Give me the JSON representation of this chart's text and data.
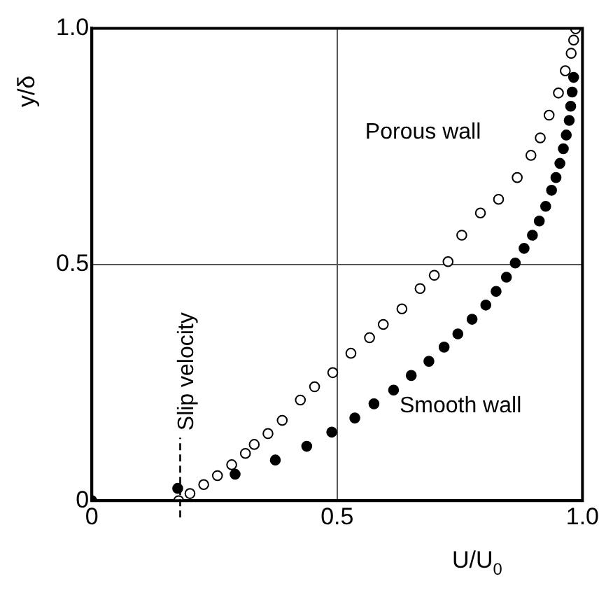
{
  "chart_data": {
    "type": "scatter",
    "xlabel": "U/U$_{0}$",
    "ylabel": "y/δ",
    "xlim": [
      0,
      1
    ],
    "ylim": [
      0,
      1
    ],
    "xticks": [
      0,
      0.5,
      {
        "value": 1,
        "label": "1.0"
      }
    ],
    "yticks": [
      0,
      0.5,
      {
        "value": 1,
        "label": "1.0"
      }
    ],
    "grid": true,
    "legend": false,
    "marker": "circle",
    "series": [
      {
        "color": "#ffffff",
        "x": [
          0.177,
          0.2,
          0.228,
          0.256,
          0.285,
          0.313,
          0.331,
          0.359,
          0.388,
          0.425,
          0.454,
          0.491,
          0.528,
          0.566,
          0.594,
          0.632,
          0.669,
          0.698,
          0.726,
          0.754,
          0.792,
          0.829,
          0.867,
          0.895,
          0.914,
          0.932,
          0.951,
          0.965,
          0.977,
          0.982,
          0.986
        ],
        "values": [
          0,
          0.015,
          0.034,
          0.053,
          0.076,
          0.1,
          0.119,
          0.142,
          0.17,
          0.213,
          0.241,
          0.271,
          0.312,
          0.345,
          0.373,
          0.406,
          0.449,
          0.477,
          0.506,
          0.562,
          0.609,
          0.638,
          0.684,
          0.731,
          0.768,
          0.816,
          0.863,
          0.91,
          0.947,
          0.975,
          0.999
        ]
      },
      {
        "color": "#000000",
        "x": [
          0,
          0.175,
          0.292,
          0.374,
          0.438,
          0.489,
          0.536,
          0.575,
          0.615,
          0.651,
          0.687,
          0.718,
          0.746,
          0.775,
          0.803,
          0.824,
          0.845,
          0.863,
          0.881,
          0.898,
          0.912,
          0.925,
          0.937,
          0.946,
          0.954,
          0.961,
          0.967,
          0.973,
          0.976,
          0.979,
          0.982
        ],
        "values": [
          0,
          0.026,
          0.056,
          0.086,
          0.115,
          0.145,
          0.175,
          0.205,
          0.234,
          0.265,
          0.295,
          0.325,
          0.353,
          0.384,
          0.414,
          0.443,
          0.473,
          0.503,
          0.534,
          0.562,
          0.592,
          0.623,
          0.657,
          0.684,
          0.714,
          0.745,
          0.774,
          0.805,
          0.835,
          0.865,
          0.896
        ]
      }
    ],
    "ref_lines": [
      {
        "axis": "x",
        "value": 0.18,
        "label": "Slip velocity",
        "line_style": "dashed"
      }
    ],
    "annotations": [
      "Porous wall",
      "Smooth wall"
    ]
  }
}
